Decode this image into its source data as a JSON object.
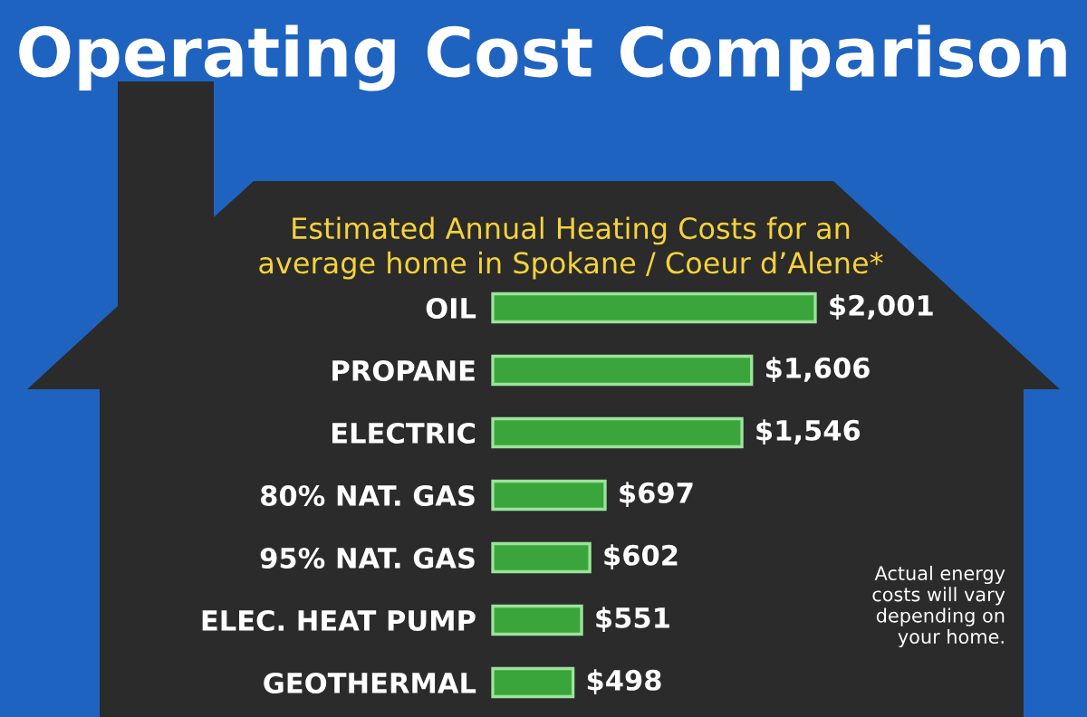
{
  "chart_data": {
    "type": "bar",
    "orientation": "horizontal",
    "title": "Operating Cost Comparison",
    "subtitle": "Estimated Annual Heating Costs for an\naverage home in Spokane / Coeur d’Alene*",
    "categories": [
      "OIL",
      "PROPANE",
      "ELECTRIC",
      "80% NAT. GAS",
      "95% NAT. GAS",
      "ELEC. HEAT PUMP",
      "GEOTHERMAL"
    ],
    "values": [
      2001,
      1606,
      1546,
      697,
      602,
      551,
      498
    ],
    "value_labels": [
      "$2,001",
      "$1,606",
      "$1,546",
      "$697",
      "$602",
      "$551",
      "$498"
    ],
    "color": "#3aa53a",
    "annotations": [
      "Actual energy\ncosts will vary\ndepending on\nyour home."
    ]
  }
}
